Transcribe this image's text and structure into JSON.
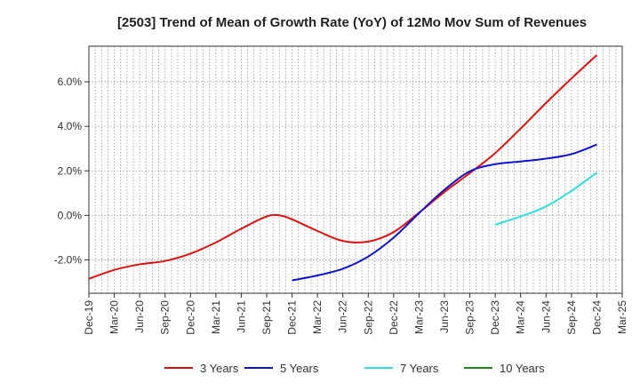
{
  "chart_data": {
    "type": "line",
    "title": "[2503]  Trend of Mean of Growth Rate (YoY) of 12Mo Mov Sum of Revenues",
    "xlabel": "",
    "ylabel": "",
    "ylim": [
      -3.5,
      7.6
    ],
    "y_ticks": [
      -2.0,
      0.0,
      2.0,
      4.0,
      6.0
    ],
    "y_tick_labels": [
      "-2.0%",
      "0.0%",
      "2.0%",
      "4.0%",
      "6.0%"
    ],
    "x_tick_labels": [
      "Dec-19",
      "Mar-20",
      "Jun-20",
      "Sep-20",
      "Dec-20",
      "Mar-21",
      "Jun-21",
      "Sep-21",
      "Dec-21",
      "Mar-22",
      "Jun-22",
      "Sep-22",
      "Dec-22",
      "Mar-23",
      "Jun-23",
      "Sep-23",
      "Dec-23",
      "Mar-24",
      "Jun-24",
      "Sep-24",
      "Dec-24",
      "Mar-25"
    ],
    "grid": true,
    "legend_position": "bottom",
    "series": [
      {
        "name": "3 Years",
        "color": "#dd1111",
        "points": [
          [
            0,
            -2.85
          ],
          [
            1,
            -2.45
          ],
          [
            2,
            -2.2
          ],
          [
            3,
            -2.05
          ],
          [
            4,
            -1.72
          ],
          [
            5,
            -1.22
          ],
          [
            6,
            -0.6
          ],
          [
            7,
            -0.05
          ],
          [
            7.5,
            0.0
          ],
          [
            8,
            -0.18
          ],
          [
            9,
            -0.7
          ],
          [
            10,
            -1.15
          ],
          [
            11,
            -1.18
          ],
          [
            12,
            -0.75
          ],
          [
            13,
            0.12
          ],
          [
            14,
            1.05
          ],
          [
            15,
            1.9
          ],
          [
            16,
            2.8
          ],
          [
            17,
            3.9
          ],
          [
            18,
            5.05
          ],
          [
            19,
            6.15
          ],
          [
            20,
            7.2
          ]
        ]
      },
      {
        "name": "5 Years",
        "color": "#1111cc",
        "points": [
          [
            8,
            -2.92
          ],
          [
            9,
            -2.7
          ],
          [
            10,
            -2.4
          ],
          [
            11,
            -1.85
          ],
          [
            12,
            -1.0
          ],
          [
            13,
            0.1
          ],
          [
            14,
            1.15
          ],
          [
            15,
            1.98
          ],
          [
            16,
            2.3
          ],
          [
            17,
            2.42
          ],
          [
            18,
            2.55
          ],
          [
            19,
            2.75
          ],
          [
            20,
            3.18
          ]
        ]
      },
      {
        "name": "7 Years",
        "color": "#33dddd",
        "points": [
          [
            16,
            -0.42
          ],
          [
            17,
            -0.05
          ],
          [
            18,
            0.4
          ],
          [
            19,
            1.1
          ],
          [
            20,
            1.92
          ]
        ]
      },
      {
        "name": "10 Years",
        "color": "#228822",
        "points": []
      }
    ]
  }
}
